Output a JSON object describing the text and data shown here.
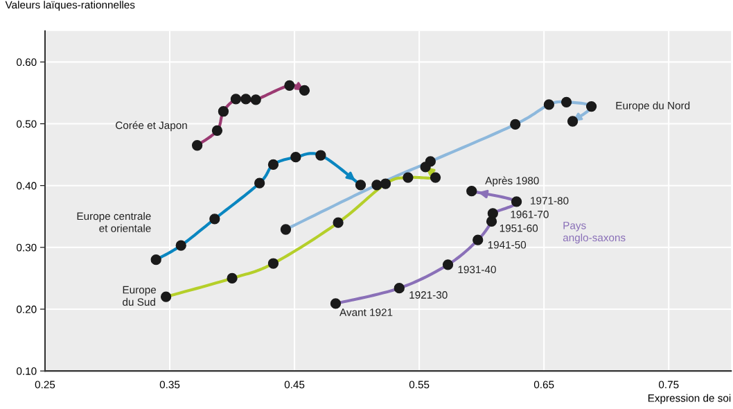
{
  "chart_data": {
    "type": "line",
    "xlabel": "Expression de soi",
    "ylabel": "Valeurs laïques-rationnelles",
    "xlim": [
      0.25,
      0.8
    ],
    "ylim": [
      0.1,
      0.65
    ],
    "xticks": [
      {
        "value": 0.25,
        "label": "0.25"
      },
      {
        "value": 0.35,
        "label": "0.35"
      },
      {
        "value": 0.45,
        "label": "0.45"
      },
      {
        "value": 0.55,
        "label": "0.55"
      },
      {
        "value": 0.65,
        "label": "0.65"
      },
      {
        "value": 0.75,
        "label": "0.75"
      }
    ],
    "yticks": [
      {
        "value": 0.1,
        "label": "0.10"
      },
      {
        "value": 0.2,
        "label": "0.20"
      },
      {
        "value": 0.3,
        "label": "0.30"
      },
      {
        "value": 0.4,
        "label": "0.40"
      },
      {
        "value": 0.5,
        "label": "0.50"
      },
      {
        "value": 0.6,
        "label": "0.60"
      }
    ],
    "grid": true,
    "marker": "circle",
    "line_style": "solid",
    "series": [
      {
        "name": "Corée et Japon",
        "color": "#9b3a72",
        "x": [
          0.372,
          0.388,
          0.393,
          0.403,
          0.411,
          0.419,
          0.446,
          0.458
        ],
        "values": [
          0.465,
          0.489,
          0.52,
          0.54,
          0.54,
          0.539,
          0.562,
          0.554
        ]
      },
      {
        "name": "Europe centrale\net orientale",
        "color": "#0a86c0",
        "x": [
          0.339,
          0.359,
          0.386,
          0.422,
          0.433,
          0.451,
          0.471,
          0.503
        ],
        "values": [
          0.28,
          0.303,
          0.346,
          0.404,
          0.434,
          0.446,
          0.449,
          0.401
        ]
      },
      {
        "name": "Europe du Nord",
        "color": "#8db8dc",
        "x": [
          0.443,
          0.516,
          0.559,
          0.627,
          0.654,
          0.668,
          0.688,
          0.673
        ],
        "values": [
          0.329,
          0.401,
          0.439,
          0.499,
          0.531,
          0.535,
          0.528,
          0.504
        ]
      },
      {
        "name": "Europe\ndu Sud",
        "color": "#b5cf2a",
        "x": [
          0.347,
          0.4,
          0.433,
          0.485,
          0.523,
          0.541,
          0.563,
          0.555
        ],
        "values": [
          0.22,
          0.25,
          0.274,
          0.34,
          0.403,
          0.413,
          0.413,
          0.43
        ]
      },
      {
        "name": "Pays\nanglo-saxons",
        "color": "#8a70b8",
        "x": [
          0.483,
          0.534,
          0.573,
          0.597,
          0.608,
          0.609,
          0.628,
          0.592
        ],
        "values": [
          0.209,
          0.234,
          0.272,
          0.312,
          0.342,
          0.355,
          0.374,
          0.391
        ]
      }
    ],
    "annotations": [
      {
        "text": "Avant 1921",
        "x": 0.483,
        "y": 0.209
      },
      {
        "text": "1921-30",
        "x": 0.534,
        "y": 0.234
      },
      {
        "text": "1931-40",
        "x": 0.573,
        "y": 0.272
      },
      {
        "text": "1941-50",
        "x": 0.597,
        "y": 0.312
      },
      {
        "text": "1951-60",
        "x": 0.608,
        "y": 0.342
      },
      {
        "text": "1961-70",
        "x": 0.609,
        "y": 0.355
      },
      {
        "text": "1971-80",
        "x": 0.628,
        "y": 0.374
      },
      {
        "text": "Après 1980",
        "x": 0.592,
        "y": 0.391
      }
    ]
  }
}
